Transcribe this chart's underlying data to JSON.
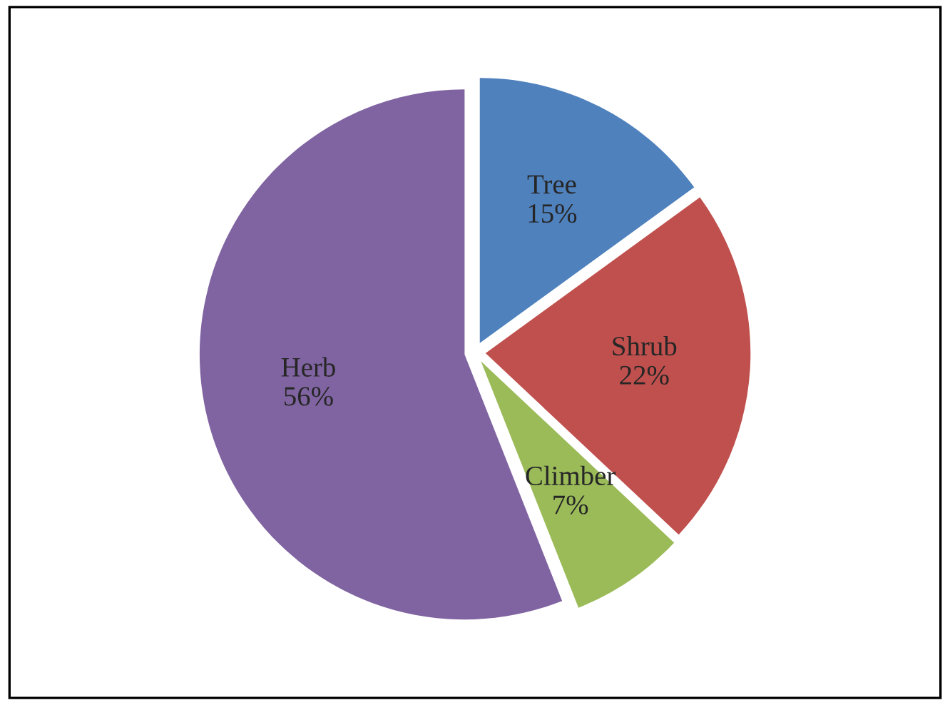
{
  "chart_data": {
    "type": "pie",
    "categories": [
      "Tree",
      "Shrub",
      "Climber",
      "Herb"
    ],
    "values": [
      15,
      22,
      7,
      56
    ],
    "value_labels": [
      "15%",
      "22%",
      "7%",
      "56%"
    ],
    "colors": [
      "#4f81bd",
      "#c0504d",
      "#9bbb59",
      "#8064a2"
    ],
    "legend": false
  }
}
